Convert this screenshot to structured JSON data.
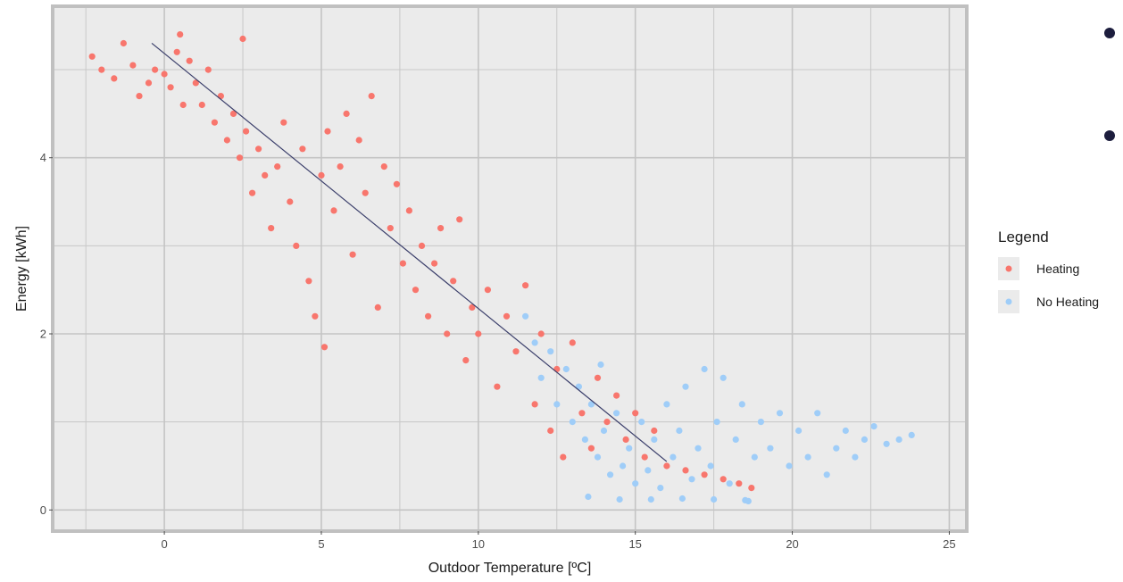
{
  "chart_data": {
    "type": "scatter",
    "title": "",
    "xlabel": "Outdoor Temperature [ºC]",
    "ylabel": "Energy [kWh]",
    "xlim": [
      -3.5,
      25.5
    ],
    "ylim": [
      -0.22,
      5.7
    ],
    "x_ticks": [
      0,
      5,
      10,
      15,
      20,
      25
    ],
    "y_ticks": [
      0,
      2,
      4
    ],
    "grid": true,
    "legend": {
      "title": "Legend",
      "position": "right",
      "entries": [
        {
          "label": "Heating",
          "color": "#f8766d"
        },
        {
          "label": "No Heating",
          "color": "#9fcdf8"
        }
      ]
    },
    "series": [
      {
        "name": "Heating",
        "color": "#f8766d",
        "points": [
          [
            -2.3,
            5.15
          ],
          [
            -2.0,
            5.0
          ],
          [
            -1.6,
            4.9
          ],
          [
            -1.3,
            5.3
          ],
          [
            -1.0,
            5.05
          ],
          [
            -0.8,
            4.7
          ],
          [
            -0.5,
            4.85
          ],
          [
            -0.3,
            5.0
          ],
          [
            0.0,
            4.95
          ],
          [
            0.2,
            4.8
          ],
          [
            0.4,
            5.2
          ],
          [
            0.5,
            5.4
          ],
          [
            0.6,
            4.6
          ],
          [
            0.8,
            5.1
          ],
          [
            1.0,
            4.85
          ],
          [
            1.2,
            4.6
          ],
          [
            1.4,
            5.0
          ],
          [
            1.6,
            4.4
          ],
          [
            1.8,
            4.7
          ],
          [
            2.0,
            4.2
          ],
          [
            2.2,
            4.5
          ],
          [
            2.4,
            4.0
          ],
          [
            2.5,
            5.35
          ],
          [
            2.6,
            4.3
          ],
          [
            2.8,
            3.6
          ],
          [
            3.0,
            4.1
          ],
          [
            3.2,
            3.8
          ],
          [
            3.4,
            3.2
          ],
          [
            3.6,
            3.9
          ],
          [
            3.8,
            4.4
          ],
          [
            4.0,
            3.5
          ],
          [
            4.2,
            3.0
          ],
          [
            4.4,
            4.1
          ],
          [
            4.6,
            2.6
          ],
          [
            4.8,
            2.2
          ],
          [
            5.0,
            3.8
          ],
          [
            5.1,
            1.85
          ],
          [
            5.2,
            4.3
          ],
          [
            5.4,
            3.4
          ],
          [
            5.6,
            3.9
          ],
          [
            5.8,
            4.5
          ],
          [
            6.0,
            2.9
          ],
          [
            6.2,
            4.2
          ],
          [
            6.4,
            3.6
          ],
          [
            6.6,
            4.7
          ],
          [
            6.8,
            2.3
          ],
          [
            7.0,
            3.9
          ],
          [
            7.2,
            3.2
          ],
          [
            7.4,
            3.7
          ],
          [
            7.6,
            2.8
          ],
          [
            7.8,
            3.4
          ],
          [
            8.0,
            2.5
          ],
          [
            8.2,
            3.0
          ],
          [
            8.4,
            2.2
          ],
          [
            8.6,
            2.8
          ],
          [
            8.8,
            3.2
          ],
          [
            9.0,
            2.0
          ],
          [
            9.2,
            2.6
          ],
          [
            9.4,
            3.3
          ],
          [
            9.6,
            1.7
          ],
          [
            9.8,
            2.3
          ],
          [
            10.0,
            2.0
          ],
          [
            10.3,
            2.5
          ],
          [
            10.6,
            1.4
          ],
          [
            10.9,
            2.2
          ],
          [
            11.2,
            1.8
          ],
          [
            11.5,
            2.55
          ],
          [
            11.8,
            1.2
          ],
          [
            12.0,
            2.0
          ],
          [
            12.3,
            0.9
          ],
          [
            12.5,
            1.6
          ],
          [
            12.7,
            0.6
          ],
          [
            13.0,
            1.9
          ],
          [
            13.3,
            1.1
          ],
          [
            13.6,
            0.7
          ],
          [
            13.8,
            1.5
          ],
          [
            14.1,
            1.0
          ],
          [
            14.4,
            1.3
          ],
          [
            14.7,
            0.8
          ],
          [
            15.0,
            1.1
          ],
          [
            15.3,
            0.6
          ],
          [
            15.6,
            0.9
          ],
          [
            16.0,
            0.5
          ],
          [
            16.6,
            0.45
          ],
          [
            17.2,
            0.4
          ],
          [
            17.8,
            0.35
          ],
          [
            18.3,
            0.3
          ],
          [
            18.7,
            0.25
          ]
        ]
      },
      {
        "name": "No Heating",
        "color": "#9fcdf8",
        "points": [
          [
            11.5,
            2.2
          ],
          [
            11.8,
            1.9
          ],
          [
            12.0,
            1.5
          ],
          [
            12.3,
            1.8
          ],
          [
            12.5,
            1.2
          ],
          [
            12.8,
            1.6
          ],
          [
            13.0,
            1.0
          ],
          [
            13.2,
            1.4
          ],
          [
            13.4,
            0.8
          ],
          [
            13.6,
            1.2
          ],
          [
            13.8,
            0.6
          ],
          [
            13.9,
            1.65
          ],
          [
            14.0,
            0.9
          ],
          [
            14.2,
            0.4
          ],
          [
            14.4,
            1.1
          ],
          [
            14.6,
            0.5
          ],
          [
            14.8,
            0.7
          ],
          [
            15.0,
            0.3
          ],
          [
            15.2,
            1.0
          ],
          [
            15.4,
            0.45
          ],
          [
            15.6,
            0.8
          ],
          [
            15.8,
            0.25
          ],
          [
            16.0,
            1.2
          ],
          [
            16.2,
            0.6
          ],
          [
            16.4,
            0.9
          ],
          [
            16.6,
            1.4
          ],
          [
            16.8,
            0.35
          ],
          [
            17.0,
            0.7
          ],
          [
            17.2,
            1.6
          ],
          [
            17.4,
            0.5
          ],
          [
            17.6,
            1.0
          ],
          [
            17.8,
            1.5
          ],
          [
            18.0,
            0.3
          ],
          [
            18.2,
            0.8
          ],
          [
            18.4,
            1.2
          ],
          [
            18.6,
            0.1
          ],
          [
            18.8,
            0.6
          ],
          [
            19.0,
            1.0
          ],
          [
            19.3,
            0.7
          ],
          [
            19.6,
            1.1
          ],
          [
            19.9,
            0.5
          ],
          [
            20.2,
            0.9
          ],
          [
            20.5,
            0.6
          ],
          [
            20.8,
            1.1
          ],
          [
            21.1,
            0.4
          ],
          [
            21.4,
            0.7
          ],
          [
            21.7,
            0.9
          ],
          [
            22.0,
            0.6
          ],
          [
            22.3,
            0.8
          ],
          [
            22.6,
            0.95
          ],
          [
            23.0,
            0.75
          ],
          [
            23.4,
            0.8
          ],
          [
            23.8,
            0.85
          ],
          [
            13.5,
            0.15
          ],
          [
            14.5,
            0.12
          ],
          [
            15.5,
            0.12
          ],
          [
            16.5,
            0.13
          ],
          [
            17.5,
            0.12
          ],
          [
            18.5,
            0.11
          ]
        ]
      }
    ],
    "trend_line": {
      "color": "#3b3f6b",
      "from": [
        -0.4,
        5.3
      ],
      "to": [
        16.0,
        0.55
      ]
    }
  },
  "side_bullets": {
    "color": "#1c1d3d",
    "count": 2
  }
}
